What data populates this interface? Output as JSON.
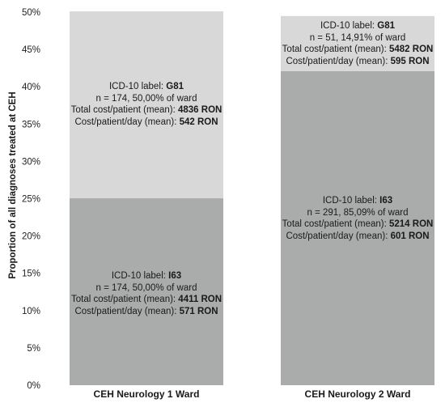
{
  "chart_data": {
    "type": "bar",
    "stacked": true,
    "ylabel": "Proportion of all diagnoses treated at CEH",
    "xlabel": "",
    "ylim": [
      0,
      50
    ],
    "yticks": [
      "0%",
      "5%",
      "10%",
      "15%",
      "20%",
      "25%",
      "30%",
      "35%",
      "40%",
      "45%",
      "50%"
    ],
    "categories": [
      "CEH Neurology 1 Ward",
      "CEH Neurology 2 Ward"
    ],
    "grid": false,
    "series": [
      {
        "code": "I63",
        "color": "#a9acab",
        "values": [
          25.05,
          42.1
        ],
        "annotations": [
          {
            "label_prefix": "ICD-10 label: ",
            "label_value": "I63",
            "n_line": "n = 174, 50,00% of ward",
            "cost_prefix": "Total cost/patient (mean): ",
            "cost_value": "4411 RON",
            "day_prefix": "Cost/patient/day (mean): ",
            "day_value": "571 RON"
          },
          {
            "label_prefix": "ICD-10 label: ",
            "label_value": "I63",
            "n_line": "n = 291, 85,09% of ward",
            "cost_prefix": "Total cost/patient (mean): ",
            "cost_value": "5214 RON",
            "day_prefix": "Cost/patient/day (mean): ",
            "day_value": "601 RON"
          }
        ]
      },
      {
        "code": "G81",
        "color": "#d8d8d8",
        "values": [
          25.05,
          7.38
        ],
        "annotations": [
          {
            "label_prefix": "ICD-10 label: ",
            "label_value": "G81",
            "n_line": "n = 174, 50,00% of ward",
            "cost_prefix": "Total cost/patient (mean): ",
            "cost_value": "4836 RON",
            "day_prefix": "Cost/patient/day (mean): ",
            "day_value": "542 RON"
          },
          {
            "label_prefix": "ICD-10 label: ",
            "label_value": "G81",
            "n_line": "n = 51, 14,91% of ward",
            "cost_prefix": "Total cost/patient (mean): ",
            "cost_value": "5482 RON",
            "day_prefix": "Cost/patient/day (mean): ",
            "day_value": "595 RON"
          }
        ]
      }
    ]
  }
}
